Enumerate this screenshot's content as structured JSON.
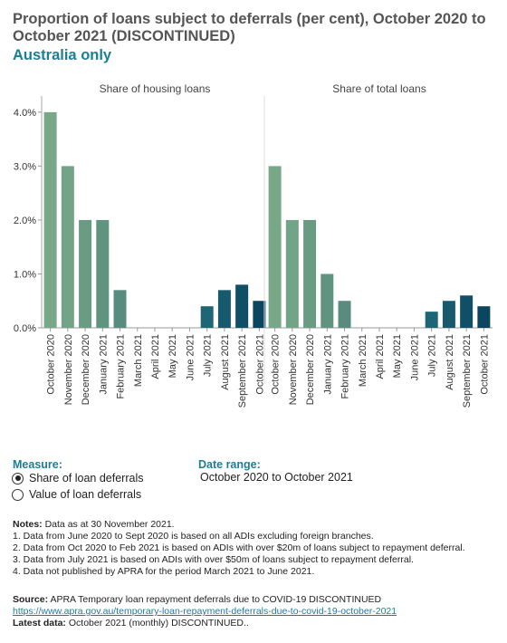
{
  "title": "Proportion of loans subject to deferrals (per cent), October 2020 to October 2021 (DISCONTINUED)",
  "subtitle": "Australia only",
  "controls": {
    "measure_label": "Measure:",
    "measure_options": [
      "Share of loan deferrals",
      "Value of loan deferrals"
    ],
    "measure_selected": "Share of loan deferrals",
    "date_range_label": "Date range:",
    "date_range_value": "October 2020 to October 2021"
  },
  "notes": {
    "heading": "Notes:",
    "intro": "Data as at 30 November 2021.",
    "items": [
      "1. Data from June 2020 to Sept 2020 is based on all ADIs excluding foreign branches.",
      "2. Data from Oct 2020 to Feb 2021 is based on ADIs with over $20m of loans subject to repayment deferral.",
      "3. Data from July 2021 is based on ADIs with over $50m of loans subject to repayment deferral.",
      "4. Data not published by APRA for the period March 2021 to June 2021."
    ]
  },
  "source": {
    "label": "Source:",
    "text": "APRA Temporary loan repayment deferrals due to COVID-19 DISCONTINUED",
    "link": "https://www.apra.gov.au/temporary-loan-repayment-deferrals-due-to-covid-19-october-2021",
    "latest_label": "Latest data:",
    "latest_value": "October 2021 (monthly) DISCONTINUED.."
  },
  "chart_data": {
    "type": "bar",
    "categories": [
      "October 2020",
      "November 2020",
      "December 2020",
      "January 2021",
      "February 2021",
      "March 2021",
      "April 2021",
      "May 2021",
      "June 2021",
      "July 2021",
      "August 2021",
      "September 2021",
      "October 2021"
    ],
    "panels": [
      {
        "title": "Share of housing loans",
        "values": [
          4.0,
          3.0,
          2.0,
          2.0,
          0.7,
          null,
          null,
          null,
          null,
          0.4,
          0.7,
          0.8,
          0.5
        ]
      },
      {
        "title": "Share of total loans",
        "values": [
          3.0,
          2.0,
          2.0,
          1.0,
          0.5,
          null,
          null,
          null,
          null,
          0.3,
          0.5,
          0.6,
          0.4
        ]
      }
    ],
    "y_ticks": [
      "0.0%",
      "1.0%",
      "2.0%",
      "3.0%",
      "4.0%"
    ],
    "ylim": [
      0,
      4.3
    ],
    "colors": [
      "#79a889",
      "#74a487",
      "#6a9c84",
      "#619381",
      "#588c7f",
      null,
      null,
      null,
      null,
      "#1e6675",
      "#175a6e",
      "#114f66",
      "#0c4560"
    ],
    "grid": false
  }
}
